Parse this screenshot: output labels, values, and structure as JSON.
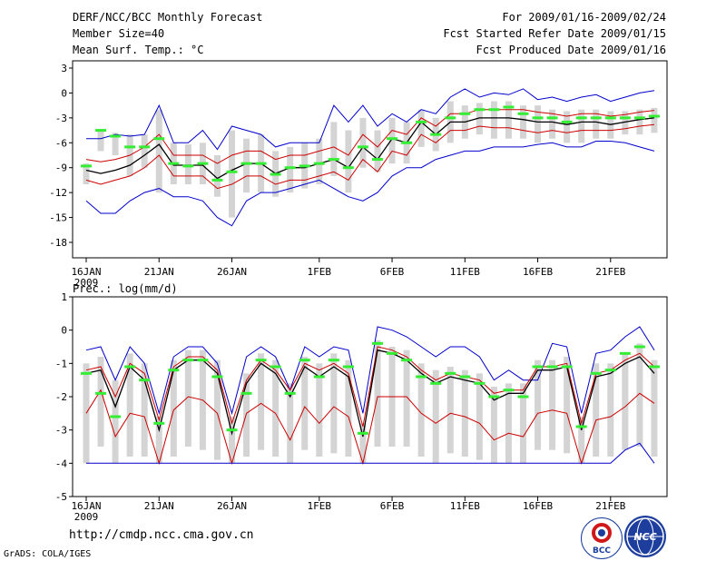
{
  "header": {
    "title": "DERF/NCC/BCC Monthly Forecast",
    "member": "Member Size=40",
    "variable": "Mean Surf. Temp.: °C",
    "period": "For 2009/01/16-2009/02/24",
    "refer": "Fcst Started Refer Date 2009/01/15",
    "produced": "Fcst Produced Date 2009/01/16"
  },
  "footer": {
    "url": "http://cmdp.ncc.cma.gov.cn",
    "credit": "GrADS: COLA/IGES",
    "logo1": "BCC",
    "logo2": "NCC"
  },
  "colors": {
    "ens_range": "#0000cc",
    "spread": "#cc0000",
    "mean": "#000000",
    "box": "#d4d4d4",
    "median": "#33ee33"
  },
  "chart_data": [
    {
      "type": "line",
      "title": "Mean Surf. Temp.: °C",
      "ylabel": "°C",
      "ylim": [
        -20,
        3.5
      ],
      "yticks": [
        3,
        0,
        -3,
        -6,
        -9,
        -12,
        -15,
        -18
      ],
      "xtick_labels": [
        "16JAN",
        "21JAN",
        "26JAN",
        "1FEB",
        "6FEB",
        "11FEB",
        "16FEB",
        "21FEB"
      ],
      "xtick_days": [
        0,
        5,
        10,
        16,
        21,
        26,
        31,
        36
      ],
      "x_sublabel": "2009",
      "x_days": [
        0,
        1,
        2,
        3,
        4,
        5,
        6,
        7,
        8,
        9,
        10,
        11,
        12,
        13,
        14,
        15,
        16,
        17,
        18,
        19,
        20,
        21,
        22,
        23,
        24,
        25,
        26,
        27,
        28,
        29,
        30,
        31,
        32,
        33,
        34,
        35,
        36,
        37,
        38,
        39
      ],
      "series": [
        {
          "name": "ensemble max",
          "color": "#0000cc",
          "values": [
            -5.5,
            -5.5,
            -5,
            -5.2,
            -5,
            -1.5,
            -6,
            -6,
            -4.5,
            -6.8,
            -4,
            -4.5,
            -5,
            -6.5,
            -6,
            -6,
            -6,
            -1.5,
            -3.5,
            -1.5,
            -4,
            -2.5,
            -3.5,
            -2,
            -2.5,
            -0.5,
            0.5,
            -0.5,
            0,
            -0.2,
            0.5,
            -0.8,
            -0.5,
            -1,
            -0.5,
            -0.2,
            -1,
            -0.5,
            0,
            0.3
          ]
        },
        {
          "name": "upper spread",
          "color": "#cc0000",
          "values": [
            -8,
            -8.3,
            -8,
            -7.5,
            -6.5,
            -5,
            -7.5,
            -7.5,
            -7.5,
            -8.5,
            -7.5,
            -7,
            -7,
            -8,
            -7.5,
            -7.5,
            -7,
            -6.5,
            -7.5,
            -5,
            -6.5,
            -4.5,
            -5,
            -3,
            -4,
            -2.5,
            -2.5,
            -2,
            -2,
            -2,
            -2,
            -2.3,
            -2.5,
            -2.8,
            -2.5,
            -2.5,
            -2.8,
            -2.6,
            -2.3,
            -2.1
          ]
        },
        {
          "name": "ensemble mean",
          "color": "#000000",
          "values": [
            -9.3,
            -9.7,
            -9.3,
            -8.7,
            -7.5,
            -6.2,
            -8.7,
            -8.7,
            -8.7,
            -10.3,
            -9.3,
            -8.5,
            -8.5,
            -9.7,
            -9,
            -9,
            -8.5,
            -8,
            -9,
            -6.5,
            -8,
            -5.5,
            -6,
            -3.5,
            -5,
            -3.5,
            -3.5,
            -3,
            -3,
            -3,
            -3.2,
            -3.5,
            -3.5,
            -3.8,
            -3.5,
            -3.5,
            -3.8,
            -3.5,
            -3.2,
            -3
          ]
        },
        {
          "name": "lower spread",
          "color": "#cc0000",
          "values": [
            -10.5,
            -11,
            -10.5,
            -10,
            -9,
            -7.5,
            -10,
            -10,
            -10,
            -11.5,
            -11,
            -10,
            -10,
            -11,
            -10.5,
            -10.5,
            -10,
            -9.5,
            -10.5,
            -8,
            -9.5,
            -7,
            -7.5,
            -5,
            -6,
            -4.5,
            -4.5,
            -4,
            -4.2,
            -4.2,
            -4.5,
            -4.8,
            -4.5,
            -4.8,
            -4.5,
            -4.5,
            -4.5,
            -4.3,
            -4,
            -3.8
          ]
        },
        {
          "name": "ensemble min",
          "color": "#0000cc",
          "values": [
            -13,
            -14.5,
            -14.5,
            -13,
            -12,
            -11.5,
            -12.5,
            -12.5,
            -13,
            -15,
            -16,
            -13,
            -12,
            -12,
            -11.5,
            -11,
            -10.5,
            -11.5,
            -12.5,
            -13,
            -12,
            -10,
            -9,
            -9,
            -8,
            -7.5,
            -7,
            -7,
            -6.5,
            -6.5,
            -6.5,
            -6.2,
            -6,
            -6.5,
            -6.5,
            -5.8,
            -5.8,
            -6,
            -6.5,
            -7
          ]
        }
      ],
      "boxes": {
        "upper": [
          -8.5,
          -4.5,
          -4.8,
          -5,
          -5,
          -2,
          -6,
          -6.2,
          -6,
          -7.5,
          -4.5,
          -5.5,
          -5,
          -7,
          -6.5,
          -6,
          -5.5,
          -3.5,
          -4.5,
          -3,
          -4.5,
          -3,
          -3.5,
          -2,
          -3,
          -1,
          -1.5,
          -1.2,
          -1,
          -1,
          -1.5,
          -1.5,
          -2,
          -2.2,
          -2,
          -2,
          -2.2,
          -2.2,
          -2,
          -1.8
        ],
        "lower": [
          -11,
          -7,
          -7.5,
          -10,
          -9,
          -12,
          -11,
          -11,
          -11,
          -12.5,
          -15,
          -12,
          -12,
          -12.5,
          -12,
          -11.5,
          -11,
          -10,
          -12,
          -9,
          -9.5,
          -8.5,
          -8.5,
          -6.5,
          -7,
          -6,
          -5.5,
          -5,
          -5.5,
          -5.5,
          -5.5,
          -6,
          -5.5,
          -6,
          -6,
          -5.5,
          -5.5,
          -5,
          -5,
          -4.8
        ],
        "median": [
          -8.8,
          -4.5,
          -5.2,
          -6.5,
          -6.5,
          -5.5,
          -8.5,
          -8.8,
          -8.5,
          -10.5,
          -9.5,
          -8.5,
          -8.5,
          -9.8,
          -9,
          -8.8,
          -8.5,
          -8,
          -9,
          -6.5,
          -8,
          -5.5,
          -6,
          -3.5,
          -5,
          -3,
          -2.5,
          -2,
          -2,
          -1.7,
          -2.5,
          -3,
          -3,
          -3.5,
          -3,
          -3,
          -3,
          -3,
          -3,
          -2.8
        ]
      }
    },
    {
      "type": "line",
      "title": "Prec.: log(mm/d)",
      "ylabel": "log(mm/d)",
      "ylim": [
        -5,
        1
      ],
      "yticks": [
        1,
        0,
        -1,
        -2,
        -3,
        -4,
        -5
      ],
      "xtick_labels": [
        "16JAN",
        "21JAN",
        "26JAN",
        "1FEB",
        "6FEB",
        "11FEB",
        "16FEB",
        "21FEB"
      ],
      "xtick_days": [
        0,
        5,
        10,
        16,
        21,
        26,
        31,
        36
      ],
      "x_sublabel": "2009",
      "x_days": [
        0,
        1,
        2,
        3,
        4,
        5,
        6,
        7,
        8,
        9,
        10,
        11,
        12,
        13,
        14,
        15,
        16,
        17,
        18,
        19,
        20,
        21,
        22,
        23,
        24,
        25,
        26,
        27,
        28,
        29,
        30,
        31,
        32,
        33,
        34,
        35,
        36,
        37,
        38,
        39
      ],
      "series": [
        {
          "name": "ensemble max",
          "color": "#0000cc",
          "values": [
            -0.6,
            -0.5,
            -1.5,
            -0.5,
            -1,
            -2.5,
            -0.8,
            -0.5,
            -0.5,
            -1,
            -2.5,
            -0.8,
            -0.5,
            -0.8,
            -1.8,
            -0.5,
            -0.8,
            -0.5,
            -0.6,
            -2.5,
            0.1,
            0,
            -0.2,
            -0.5,
            -0.8,
            -0.5,
            -0.5,
            -0.8,
            -1.5,
            -1.2,
            -1.5,
            -1.5,
            -0.4,
            -0.5,
            -2.5,
            -0.7,
            -0.6,
            -0.2,
            0.1,
            -0.6
          ]
        },
        {
          "name": "upper spread",
          "color": "#cc0000",
          "values": [
            -1.2,
            -1.1,
            -2,
            -1,
            -1.3,
            -2.7,
            -1.1,
            -0.8,
            -0.8,
            -1.2,
            -2.8,
            -1.5,
            -0.9,
            -1.2,
            -1.8,
            -1,
            -1.2,
            -1,
            -1.3,
            -2.9,
            -0.5,
            -0.6,
            -0.8,
            -1.2,
            -1.5,
            -1.3,
            -1.4,
            -1.5,
            -1.9,
            -1.8,
            -1.8,
            -1.1,
            -1.1,
            -1,
            -2.8,
            -1.3,
            -1.2,
            -0.9,
            -0.7,
            -1.1
          ]
        },
        {
          "name": "ensemble mean",
          "color": "#000000",
          "values": [
            -1.3,
            -1.2,
            -2.3,
            -1.1,
            -1.5,
            -3,
            -1.2,
            -0.9,
            -0.9,
            -1.3,
            -3.1,
            -1.6,
            -1,
            -1.3,
            -2,
            -1.1,
            -1.4,
            -1.1,
            -1.4,
            -3.2,
            -0.6,
            -0.7,
            -0.9,
            -1.3,
            -1.6,
            -1.4,
            -1.5,
            -1.6,
            -2.1,
            -1.9,
            -1.9,
            -1.2,
            -1.2,
            -1.1,
            -3,
            -1.4,
            -1.3,
            -1,
            -0.8,
            -1.3
          ]
        },
        {
          "name": "lower spread",
          "color": "#cc0000",
          "values": [
            -2.5,
            -1.8,
            -3.2,
            -2.5,
            -2.6,
            -4,
            -2.4,
            -2,
            -2.1,
            -2.5,
            -4,
            -2.5,
            -2.2,
            -2.5,
            -3.3,
            -2.3,
            -2.8,
            -2.3,
            -2.6,
            -4,
            -2,
            -2,
            -2,
            -2.5,
            -2.8,
            -2.5,
            -2.6,
            -2.8,
            -3.3,
            -3.1,
            -3.2,
            -2.5,
            -2.4,
            -2.5,
            -4,
            -2.7,
            -2.6,
            -2.3,
            -1.9,
            -2.2
          ]
        },
        {
          "name": "ensemble min",
          "color": "#0000cc",
          "values": [
            -4,
            -4,
            -4,
            -4,
            -4,
            -4,
            -4,
            -4,
            -4,
            -4,
            -4,
            -4,
            -4,
            -4,
            -4,
            -4,
            -4,
            -4,
            -4,
            -4,
            -4,
            -4,
            -4,
            -4,
            -4,
            -4,
            -4,
            -4,
            -4,
            -4,
            -4,
            -4,
            -4,
            -4,
            -4,
            -4,
            -4,
            -3.6,
            -3.4,
            -4
          ]
        }
      ],
      "boxes": {
        "upper": [
          -1,
          -0.8,
          -1.5,
          -0.7,
          -1,
          -2.6,
          -0.9,
          -0.6,
          -0.6,
          -0.9,
          -2.6,
          -1.3,
          -0.7,
          -0.9,
          -1.6,
          -0.8,
          -1,
          -0.7,
          -0.9,
          -2.8,
          -0.3,
          -0.5,
          -0.6,
          -1,
          -1.2,
          -1.1,
          -1.2,
          -1.3,
          -1.7,
          -1.6,
          -1.6,
          -0.9,
          -0.9,
          -0.8,
          -2.6,
          -1,
          -1,
          -0.7,
          -0.4,
          -0.9
        ],
        "lower": [
          -4,
          -3.5,
          -4,
          -3.8,
          -3.8,
          -4,
          -3.8,
          -3.5,
          -3.6,
          -3.9,
          -4,
          -3.8,
          -3.6,
          -3.8,
          -4,
          -3.6,
          -3.8,
          -3.7,
          -3.8,
          -4,
          -3.5,
          -3.5,
          -3.5,
          -3.8,
          -4,
          -3.7,
          -3.8,
          -3.9,
          -4,
          -4,
          -4,
          -3.6,
          -3.6,
          -3.7,
          -4,
          -3.8,
          -3.8,
          -3.6,
          -3.5,
          -3.8
        ],
        "median": [
          -1.3,
          -1.9,
          -2.6,
          -1.1,
          -1.5,
          -2.8,
          -1.2,
          -0.9,
          -0.9,
          -1.4,
          -3,
          -1.9,
          -0.9,
          -1.1,
          -1.9,
          -0.9,
          -1.4,
          -0.9,
          -1.1,
          -3.1,
          -0.4,
          -0.7,
          -0.9,
          -1.4,
          -1.6,
          -1.3,
          -1.4,
          -1.6,
          -2,
          -1.8,
          -2,
          -1.1,
          -1.1,
          -1.1,
          -2.9,
          -1.3,
          -1.2,
          -0.7,
          -0.5,
          -1.1
        ]
      }
    }
  ]
}
